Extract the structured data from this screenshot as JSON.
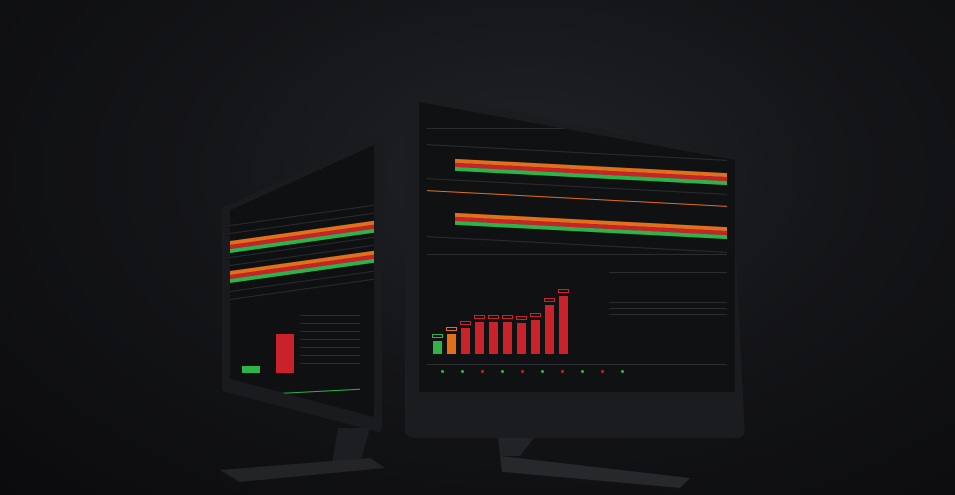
{
  "colors": {
    "background": "#141518",
    "bezel": "#1b1c1f",
    "screen": "#101113",
    "accent_orange": "#e2701a",
    "status_red": "#c9222a",
    "status_green": "#2db34a",
    "gridline": "#2b2d31"
  },
  "left_monitor": {
    "chart": {
      "bars": [
        {
          "color": "green",
          "level": 0.15
        },
        {
          "color": "red",
          "level": 0.85
        }
      ]
    }
  },
  "right_monitor": {
    "chart": {
      "bars": [
        {
          "color": "green",
          "level": 0.22
        },
        {
          "color": "orange",
          "level": 0.35
        },
        {
          "color": "red",
          "level": 0.45
        },
        {
          "color": "red",
          "level": 0.55
        },
        {
          "color": "red",
          "level": 0.55
        },
        {
          "color": "red",
          "level": 0.55
        },
        {
          "color": "red",
          "level": 0.53
        },
        {
          "color": "red",
          "level": 0.58
        },
        {
          "color": "red",
          "level": 0.85
        },
        {
          "color": "red",
          "level": 1.0
        }
      ]
    }
  }
}
